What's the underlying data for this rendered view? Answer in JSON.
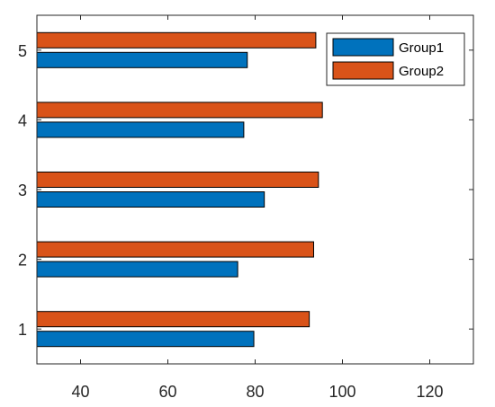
{
  "chart_data": {
    "type": "bar",
    "orientation": "horizontal",
    "categories": [
      "1",
      "2",
      "3",
      "4",
      "5"
    ],
    "series": [
      {
        "name": "Group1",
        "color": "#0072BD",
        "values": [
          79.7,
          76.0,
          82.1,
          77.4,
          78.2
        ]
      },
      {
        "name": "Group2",
        "color": "#D95319",
        "values": [
          92.4,
          93.4,
          94.5,
          95.4,
          93.9
        ]
      }
    ],
    "xlim": [
      30,
      130
    ],
    "xticks": [
      40,
      60,
      80,
      100,
      120
    ],
    "ylim": [
      0.5,
      5.5
    ],
    "grid": false,
    "legend_position": "top-right",
    "title": "",
    "xlabel": "",
    "ylabel": ""
  }
}
